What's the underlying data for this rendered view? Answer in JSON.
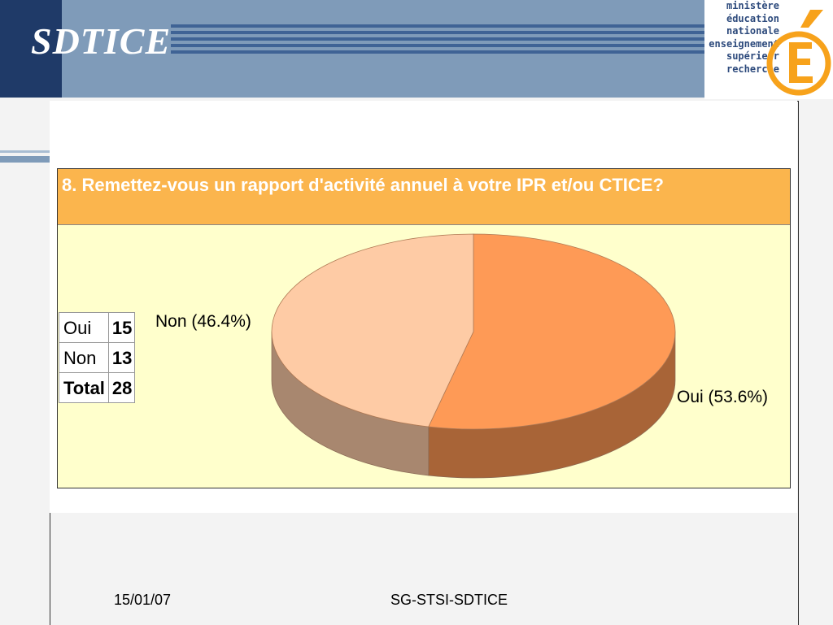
{
  "header": {
    "brand": "SDTICE"
  },
  "logo": {
    "lines": [
      "ministère",
      "éducation",
      "nationale",
      "enseignement",
      "supérieur",
      "recherche"
    ],
    "icon": "e-accent-logo-icon",
    "color": "#f7a21b"
  },
  "chart_data": {
    "type": "pie",
    "title": "8. Remettez-vous un rapport d'activité annuel à votre IPR et/ou CTICE?",
    "slices": [
      {
        "label": "Oui",
        "value": 15,
        "percent": 53.6,
        "display": "Oui (53.6%)",
        "color": "#fe9a56",
        "side_color": "#a86437"
      },
      {
        "label": "Non",
        "value": 13,
        "percent": 46.4,
        "display": "Non (46.4%)",
        "color": "#fecba5",
        "side_color": "#a8876f"
      }
    ],
    "table": {
      "rows": [
        {
          "label": "Oui",
          "value": "15"
        },
        {
          "label": "Non",
          "value": "13"
        },
        {
          "label": "Total",
          "value": "28"
        }
      ]
    },
    "colors": {
      "title_bg": "#fbb54d",
      "plot_bg": "#ffffcc"
    }
  },
  "footer": {
    "date": "15/01/07",
    "center": "SG-STSI-SDTICE"
  }
}
